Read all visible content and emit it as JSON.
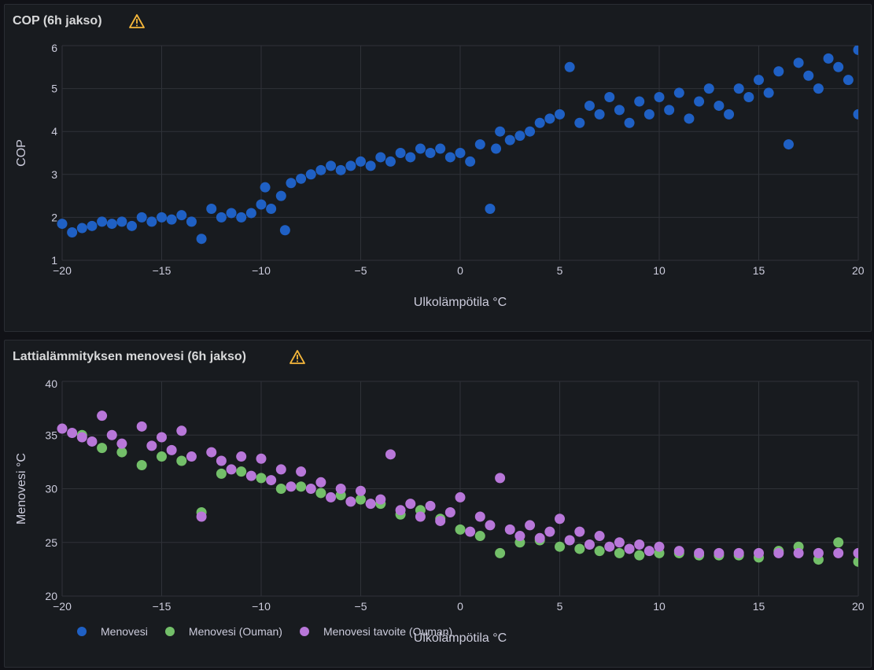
{
  "colors": {
    "menovesi": "#1f60c4",
    "ouman": "#73bf69",
    "tavoite": "#b877d9",
    "warning": "#f5b73b"
  },
  "chart_data": [
    {
      "type": "scatter",
      "title": "COP (6h jakso)",
      "xlabel": "Ulkolämpötila °C",
      "ylabel": "COP",
      "xlim": [
        -20,
        20
      ],
      "ylim": [
        1,
        6
      ],
      "xticks": [
        "−20",
        "−15",
        "−10",
        "−5",
        "0",
        "5",
        "10",
        "15",
        "20"
      ],
      "yticks": [
        "1",
        "2",
        "3",
        "4",
        "5",
        "6"
      ],
      "grid": true,
      "series": [
        {
          "color": "#1f60c4",
          "points": [
            [
              -20,
              1.85
            ],
            [
              -19.5,
              1.65
            ],
            [
              -19,
              1.75
            ],
            [
              -18.5,
              1.8
            ],
            [
              -18,
              1.9
            ],
            [
              -17.5,
              1.85
            ],
            [
              -17,
              1.9
            ],
            [
              -16.5,
              1.8
            ],
            [
              -16,
              2.0
            ],
            [
              -15.5,
              1.9
            ],
            [
              -15,
              2.0
            ],
            [
              -14.5,
              1.95
            ],
            [
              -14,
              2.05
            ],
            [
              -13.5,
              1.9
            ],
            [
              -13,
              1.5
            ],
            [
              -12.5,
              2.2
            ],
            [
              -12,
              2.0
            ],
            [
              -11.5,
              2.1
            ],
            [
              -11,
              2.0
            ],
            [
              -10.5,
              2.1
            ],
            [
              -10,
              2.3
            ],
            [
              -9.8,
              2.7
            ],
            [
              -9.5,
              2.2
            ],
            [
              -9,
              2.5
            ],
            [
              -8.8,
              1.7
            ],
            [
              -8.5,
              2.8
            ],
            [
              -8,
              2.9
            ],
            [
              -7.5,
              3.0
            ],
            [
              -7,
              3.1
            ],
            [
              -6.5,
              3.2
            ],
            [
              -6,
              3.1
            ],
            [
              -5.5,
              3.2
            ],
            [
              -5,
              3.3
            ],
            [
              -4.5,
              3.2
            ],
            [
              -4,
              3.4
            ],
            [
              -3.5,
              3.3
            ],
            [
              -3,
              3.5
            ],
            [
              -2.5,
              3.4
            ],
            [
              -2,
              3.6
            ],
            [
              -1.5,
              3.5
            ],
            [
              -1,
              3.6
            ],
            [
              -0.5,
              3.4
            ],
            [
              0,
              3.5
            ],
            [
              0.5,
              3.3
            ],
            [
              1,
              3.7
            ],
            [
              1.5,
              2.2
            ],
            [
              1.8,
              3.6
            ],
            [
              2,
              4.0
            ],
            [
              2.5,
              3.8
            ],
            [
              3,
              3.9
            ],
            [
              3.5,
              4.0
            ],
            [
              4,
              4.2
            ],
            [
              4.5,
              4.3
            ],
            [
              5,
              4.4
            ],
            [
              5.5,
              5.5
            ],
            [
              6,
              4.2
            ],
            [
              6.5,
              4.6
            ],
            [
              7,
              4.4
            ],
            [
              7.5,
              4.8
            ],
            [
              8,
              4.5
            ],
            [
              8.5,
              4.2
            ],
            [
              9,
              4.7
            ],
            [
              9.5,
              4.4
            ],
            [
              10,
              4.8
            ],
            [
              10.5,
              4.5
            ],
            [
              11,
              4.9
            ],
            [
              11.5,
              4.3
            ],
            [
              12,
              4.7
            ],
            [
              12.5,
              5.0
            ],
            [
              13,
              4.6
            ],
            [
              13.5,
              4.4
            ],
            [
              14,
              5.0
            ],
            [
              14.5,
              4.8
            ],
            [
              15,
              5.2
            ],
            [
              15.5,
              4.9
            ],
            [
              16,
              5.4
            ],
            [
              16.5,
              3.7
            ],
            [
              17,
              5.6
            ],
            [
              17.5,
              5.3
            ],
            [
              18,
              5.0
            ],
            [
              18.5,
              5.7
            ],
            [
              19,
              5.5
            ],
            [
              19.5,
              5.2
            ],
            [
              20,
              5.9
            ],
            [
              20,
              4.4
            ]
          ]
        }
      ]
    },
    {
      "type": "scatter",
      "title": "Lattialämmityksen menovesi (6h jakso)",
      "xlabel": "Ulkolämpötila °C",
      "ylabel": "Menovesi °C",
      "xlim": [
        -20,
        20
      ],
      "ylim": [
        20,
        40
      ],
      "xticks": [
        "−20",
        "−15",
        "−10",
        "−5",
        "0",
        "5",
        "10",
        "15",
        "20"
      ],
      "yticks": [
        "20",
        "25",
        "30",
        "35",
        "40"
      ],
      "grid": true,
      "legend_position": "bottom-left",
      "series": [
        {
          "name": "Menovesi",
          "color": "#1f60c4",
          "points": []
        },
        {
          "name": "Menovesi (Ouman)",
          "color": "#73bf69",
          "points": [
            [
              -19,
              35
            ],
            [
              -18,
              33.8
            ],
            [
              -17,
              33.4
            ],
            [
              -16,
              32.2
            ],
            [
              -15,
              33
            ],
            [
              -14,
              32.6
            ],
            [
              -13,
              27.8
            ],
            [
              -12,
              31.4
            ],
            [
              -11,
              31.6
            ],
            [
              -10,
              31
            ],
            [
              -9,
              30
            ],
            [
              -8,
              30.2
            ],
            [
              -7,
              29.6
            ],
            [
              -6,
              29.4
            ],
            [
              -5,
              29
            ],
            [
              -4,
              28.6
            ],
            [
              -3,
              27.6
            ],
            [
              -2,
              28
            ],
            [
              -1,
              27.2
            ],
            [
              0,
              26.2
            ],
            [
              1,
              25.6
            ],
            [
              2,
              24
            ],
            [
              3,
              25
            ],
            [
              4,
              25.2
            ],
            [
              5,
              24.6
            ],
            [
              6,
              24.4
            ],
            [
              7,
              24.2
            ],
            [
              8,
              24
            ],
            [
              9,
              23.8
            ],
            [
              10,
              24
            ],
            [
              11,
              24
            ],
            [
              12,
              23.8
            ],
            [
              13,
              23.8
            ],
            [
              14,
              23.8
            ],
            [
              15,
              23.6
            ],
            [
              16,
              24.2
            ],
            [
              17,
              24.6
            ],
            [
              18,
              23.4
            ],
            [
              19,
              25
            ],
            [
              20,
              23.2
            ]
          ]
        },
        {
          "name": "Menovesi tavoite (Ouman)",
          "color": "#b877d9",
          "points": [
            [
              -20,
              35.6
            ],
            [
              -19.5,
              35.2
            ],
            [
              -19,
              34.8
            ],
            [
              -18.5,
              34.4
            ],
            [
              -18,
              36.8
            ],
            [
              -17.5,
              35
            ],
            [
              -17,
              34.2
            ],
            [
              -16,
              35.8
            ],
            [
              -15.5,
              34
            ],
            [
              -15,
              34.8
            ],
            [
              -14.5,
              33.6
            ],
            [
              -14,
              35.4
            ],
            [
              -13.5,
              33
            ],
            [
              -13,
              27.4
            ],
            [
              -12.5,
              33.4
            ],
            [
              -12,
              32.6
            ],
            [
              -11.5,
              31.8
            ],
            [
              -11,
              33
            ],
            [
              -10.5,
              31.2
            ],
            [
              -10,
              32.8
            ],
            [
              -9.5,
              30.8
            ],
            [
              -9,
              31.8
            ],
            [
              -8.5,
              30.2
            ],
            [
              -8,
              31.6
            ],
            [
              -7.5,
              30
            ],
            [
              -7,
              30.6
            ],
            [
              -6.5,
              29.2
            ],
            [
              -6,
              30
            ],
            [
              -5.5,
              28.8
            ],
            [
              -5,
              29.8
            ],
            [
              -4.5,
              28.6
            ],
            [
              -4,
              29
            ],
            [
              -3.5,
              33.2
            ],
            [
              -3,
              28
            ],
            [
              -2.5,
              28.6
            ],
            [
              -2,
              27.4
            ],
            [
              -1.5,
              28.4
            ],
            [
              -1,
              27
            ],
            [
              -0.5,
              27.8
            ],
            [
              0,
              29.2
            ],
            [
              0.5,
              26
            ],
            [
              1,
              27.4
            ],
            [
              1.5,
              26.6
            ],
            [
              2,
              31
            ],
            [
              2.5,
              26.2
            ],
            [
              3,
              25.6
            ],
            [
              3.5,
              26.6
            ],
            [
              4,
              25.4
            ],
            [
              4.5,
              26
            ],
            [
              5,
              27.2
            ],
            [
              5.5,
              25.2
            ],
            [
              6,
              26
            ],
            [
              6.5,
              24.8
            ],
            [
              7,
              25.6
            ],
            [
              7.5,
              24.6
            ],
            [
              8,
              25
            ],
            [
              8.5,
              24.4
            ],
            [
              9,
              24.8
            ],
            [
              9.5,
              24.2
            ],
            [
              10,
              24.6
            ],
            [
              11,
              24.2
            ],
            [
              12,
              24
            ],
            [
              13,
              24
            ],
            [
              14,
              24
            ],
            [
              15,
              24
            ],
            [
              16,
              24
            ],
            [
              17,
              24
            ],
            [
              18,
              24
            ],
            [
              19,
              24
            ],
            [
              20,
              24
            ]
          ]
        }
      ]
    }
  ]
}
